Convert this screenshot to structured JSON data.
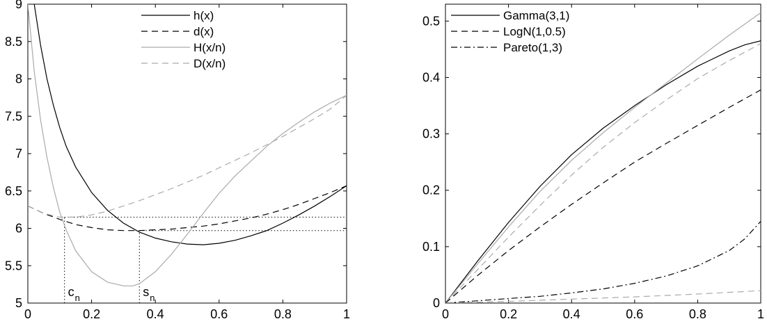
{
  "chart_data": [
    {
      "type": "line",
      "title": "",
      "xlabel": "",
      "ylabel": "",
      "xlim": [
        0,
        1
      ],
      "ylim": [
        5,
        9
      ],
      "xticks": [
        0,
        0.2,
        0.4,
        0.6,
        0.8,
        1
      ],
      "xtick_labels": [
        "0",
        "0.2",
        "0.4",
        "0.6",
        "0.8",
        "1"
      ],
      "yticks": [
        5,
        5.5,
        6,
        6.5,
        7,
        7.5,
        8,
        8.5,
        9
      ],
      "ytick_labels": [
        "5",
        "5.5",
        "6",
        "6.5",
        "7",
        "7.5",
        "8",
        "8.5",
        "9"
      ],
      "grid": false,
      "legend_position": "top",
      "series": [
        {
          "name": "h(x)",
          "color": "#000000",
          "dash": "solid",
          "x": [
            0.02,
            0.04,
            0.06,
            0.08,
            0.1,
            0.12,
            0.15,
            0.2,
            0.25,
            0.3,
            0.35,
            0.4,
            0.45,
            0.5,
            0.55,
            0.6,
            0.65,
            0.7,
            0.75,
            0.8,
            0.85,
            0.9,
            0.95,
            1.0
          ],
          "y": [
            9.0,
            8.45,
            8.0,
            7.65,
            7.35,
            7.1,
            6.82,
            6.48,
            6.24,
            6.07,
            5.95,
            5.87,
            5.82,
            5.79,
            5.78,
            5.8,
            5.84,
            5.9,
            5.97,
            6.07,
            6.18,
            6.3,
            6.43,
            6.57
          ]
        },
        {
          "name": "d(x)",
          "color": "#000000",
          "dash": "dashed",
          "x": [
            0.0,
            0.05,
            0.1,
            0.15,
            0.2,
            0.25,
            0.3,
            0.35,
            0.4,
            0.45,
            0.5,
            0.55,
            0.6,
            0.65,
            0.7,
            0.75,
            0.8,
            0.85,
            0.9,
            0.95,
            1.0
          ],
          "y": [
            6.3,
            6.2,
            6.12,
            6.05,
            6.01,
            5.98,
            5.97,
            5.97,
            5.98,
            5.99,
            6.01,
            6.03,
            6.06,
            6.1,
            6.14,
            6.19,
            6.25,
            6.32,
            6.4,
            6.48,
            6.57
          ]
        },
        {
          "name": "H(x/n)",
          "color": "#aaaaaa",
          "dash": "solid",
          "x": [
            0.0,
            0.02,
            0.04,
            0.06,
            0.08,
            0.1,
            0.12,
            0.15,
            0.2,
            0.25,
            0.3,
            0.33,
            0.35,
            0.4,
            0.45,
            0.5,
            0.55,
            0.6,
            0.65,
            0.7,
            0.75,
            0.8,
            0.85,
            0.9,
            0.95,
            1.0
          ],
          "y": [
            9.0,
            8.1,
            7.45,
            6.95,
            6.55,
            6.22,
            5.98,
            5.7,
            5.42,
            5.28,
            5.23,
            5.23,
            5.26,
            5.42,
            5.65,
            5.92,
            6.2,
            6.47,
            6.7,
            6.9,
            7.1,
            7.27,
            7.42,
            7.56,
            7.68,
            7.78
          ]
        },
        {
          "name": "D(x/n)",
          "color": "#aaaaaa",
          "dash": "dashed",
          "x": [
            0.0,
            0.05,
            0.1,
            0.15,
            0.2,
            0.25,
            0.3,
            0.35,
            0.4,
            0.45,
            0.5,
            0.55,
            0.6,
            0.65,
            0.7,
            0.75,
            0.8,
            0.85,
            0.9,
            0.95,
            1.0
          ],
          "y": [
            6.3,
            6.2,
            6.15,
            6.15,
            6.18,
            6.23,
            6.3,
            6.37,
            6.45,
            6.53,
            6.62,
            6.71,
            6.81,
            6.91,
            7.01,
            7.12,
            7.23,
            7.35,
            7.47,
            7.6,
            7.78
          ]
        }
      ],
      "annotations": [
        {
          "text": "c",
          "subscript": "n",
          "x": 0.115
        },
        {
          "text": "s",
          "subscript": "n",
          "x": 0.35
        }
      ],
      "reference_lines": {
        "vertical": [
          {
            "x": 0.115,
            "y_from": 5,
            "y_to": 6.15
          },
          {
            "x": 0.35,
            "y_from": 5,
            "y_to": 5.97
          }
        ],
        "horizontal": [
          {
            "y": 6.15,
            "x_from": 0.115,
            "x_to": 1
          },
          {
            "y": 5.97,
            "x_from": 0.35,
            "x_to": 1
          }
        ]
      }
    },
    {
      "type": "line",
      "title": "",
      "xlabel": "",
      "ylabel": "",
      "xlim": [
        0,
        1
      ],
      "ylim": [
        0,
        0.53
      ],
      "xticks": [
        0,
        0.2,
        0.4,
        0.6,
        0.8,
        1
      ],
      "xtick_labels": [
        "0",
        "0.2",
        "0.4",
        "0.6",
        "0.8",
        "1"
      ],
      "yticks": [
        0,
        0.1,
        0.2,
        0.3,
        0.4,
        0.5
      ],
      "ytick_labels": [
        "0",
        "0.1",
        "0.2",
        "0.3",
        "0.4",
        "0.5"
      ],
      "grid": false,
      "legend_position": "top-left",
      "series": [
        {
          "name": "Gamma(3,1)",
          "color": "#000000",
          "dash": "solid",
          "x": [
            0,
            0.1,
            0.2,
            0.3,
            0.4,
            0.5,
            0.6,
            0.7,
            0.8,
            0.9,
            0.95,
            1.0
          ],
          "y": [
            0,
            0.073,
            0.143,
            0.207,
            0.263,
            0.31,
            0.35,
            0.387,
            0.42,
            0.447,
            0.458,
            0.465
          ]
        },
        {
          "name": "",
          "color": "#aaaaaa",
          "dash": "solid",
          "x": [
            0,
            0.1,
            0.2,
            0.3,
            0.4,
            0.5,
            0.6,
            0.7,
            0.8,
            0.9,
            1.0
          ],
          "y": [
            0,
            0.068,
            0.135,
            0.198,
            0.253,
            0.302,
            0.347,
            0.39,
            0.433,
            0.475,
            0.515
          ]
        },
        {
          "name": "",
          "color": "#aaaaaa",
          "dash": "dashed",
          "x": [
            0,
            0.1,
            0.2,
            0.3,
            0.4,
            0.5,
            0.6,
            0.7,
            0.8,
            0.9,
            1.0
          ],
          "y": [
            0,
            0.058,
            0.117,
            0.173,
            0.227,
            0.276,
            0.32,
            0.36,
            0.398,
            0.43,
            0.46
          ]
        },
        {
          "name": "LogN(1,0.5)",
          "color": "#000000",
          "dash": "dashed",
          "x": [
            0,
            0.1,
            0.2,
            0.3,
            0.4,
            0.5,
            0.6,
            0.7,
            0.8,
            0.9,
            1.0
          ],
          "y": [
            0,
            0.048,
            0.093,
            0.135,
            0.175,
            0.213,
            0.25,
            0.283,
            0.315,
            0.347,
            0.378
          ]
        },
        {
          "name": "Pareto(1,3)",
          "color": "#000000",
          "dash": "dashdot",
          "x": [
            0,
            0.1,
            0.2,
            0.3,
            0.4,
            0.5,
            0.6,
            0.7,
            0.8,
            0.9,
            0.95,
            1.0
          ],
          "y": [
            0,
            0.004,
            0.008,
            0.012,
            0.018,
            0.025,
            0.035,
            0.048,
            0.066,
            0.093,
            0.114,
            0.145
          ]
        },
        {
          "name": "",
          "color": "#aaaaaa",
          "dash": "dashed",
          "x": [
            0,
            0.2,
            0.4,
            0.6,
            0.8,
            1.0
          ],
          "y": [
            0,
            0.003,
            0.007,
            0.011,
            0.016,
            0.022
          ]
        }
      ]
    }
  ]
}
